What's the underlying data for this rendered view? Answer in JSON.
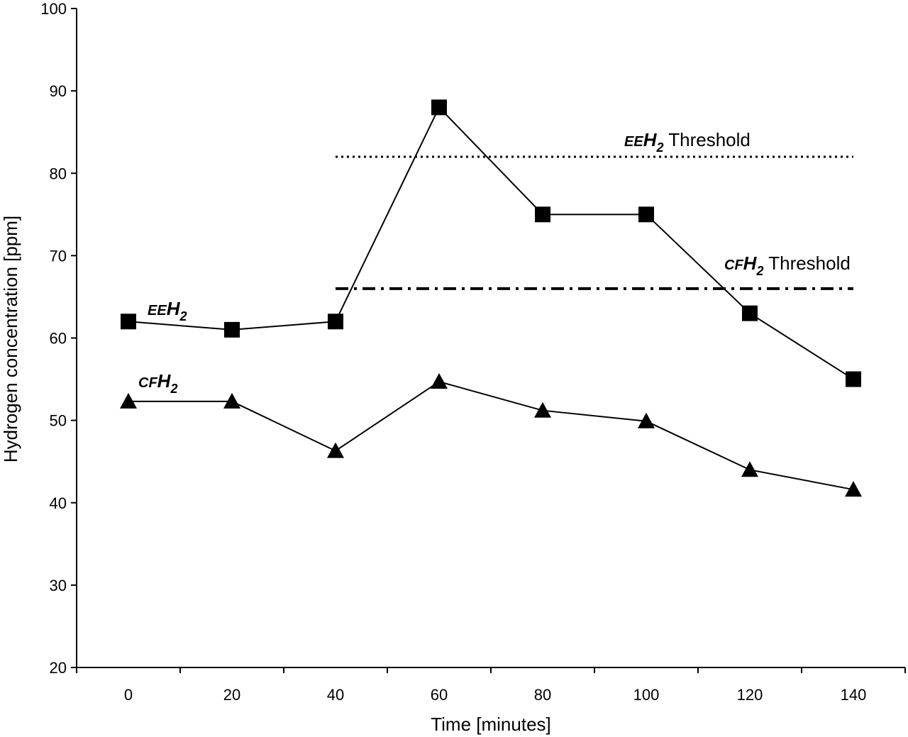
{
  "chart_data": {
    "type": "line",
    "xlabel": "Time [minutes]",
    "ylabel": "Hydrogen concentration [ppm]",
    "xlim": [
      -10,
      150
    ],
    "ylim": [
      20,
      100
    ],
    "x_ticks": [
      "0",
      "20",
      "40",
      "60",
      "80",
      "100",
      "120",
      "140"
    ],
    "y_ticks": [
      "20",
      "30",
      "40",
      "50",
      "60",
      "70",
      "80",
      "90",
      "100"
    ],
    "grid": false,
    "legend": "none",
    "series": [
      {
        "label_prefix": "EE",
        "label_main": "H",
        "label_sub": "2",
        "marker": "square",
        "color": "#000000",
        "x": [
          0,
          20,
          40,
          60,
          80,
          100,
          120,
          140
        ],
        "y": [
          62,
          61,
          62,
          88,
          75,
          75,
          63,
          55
        ]
      },
      {
        "label_prefix": "CF",
        "label_main": "H",
        "label_sub": "2",
        "marker": "triangle",
        "color": "#000000",
        "x": [
          0,
          20,
          40,
          60,
          80,
          100,
          120,
          140
        ],
        "y": [
          52.3,
          52.3,
          46.3,
          54.7,
          51.2,
          49.9,
          44,
          41.6
        ]
      }
    ],
    "thresholds": [
      {
        "label_prefix": "EE",
        "label_main": "H",
        "label_sub": "2",
        "label_suffix": " Threshold",
        "y": 82,
        "x": [
          40,
          140
        ],
        "style": "dotted"
      },
      {
        "label_prefix": "CF",
        "label_main": "H",
        "label_sub": "2",
        "label_suffix": " Threshold",
        "y": 66,
        "x": [
          40,
          140
        ],
        "style": "dash-dot"
      }
    ]
  }
}
